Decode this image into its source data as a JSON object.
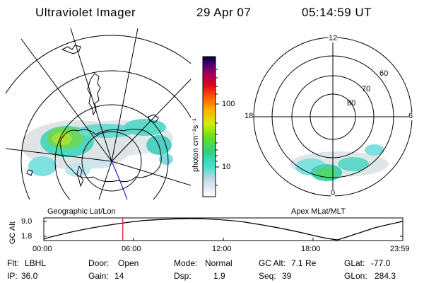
{
  "header": {
    "instrument": "Ultraviolet Imager",
    "date": "29 Apr 07",
    "time": "05:14:59 UT"
  },
  "colorbar": {
    "unit_label": "photon cm⁻²s⁻¹",
    "ticks": [
      "100",
      "10"
    ]
  },
  "left_panel": {
    "caption": "Geographic Lat/Lon"
  },
  "right_panel": {
    "caption": "Apex  MLat/MLT",
    "mlt_labels": {
      "top": "12",
      "left": "18",
      "right": "6",
      "bottom": "0"
    },
    "lat_labels": [
      "60",
      "70",
      "80"
    ]
  },
  "altitude_plot": {
    "axis_label": "GC Alt",
    "y_ticks": [
      "9.0",
      "1.8"
    ],
    "x_ticks": [
      "00:00",
      "06:00",
      "12:00",
      "18:00",
      "23:59"
    ],
    "current_time_marker_fraction": 0.22
  },
  "info": {
    "flt_label": "Flt:",
    "flt_value": "LBHL",
    "ip_label": "IP:",
    "ip_value": "36.0",
    "door_label": "Door:",
    "door_value": "Open",
    "gain_label": "Gain:",
    "gain_value": "14",
    "mode_label": "Mode:",
    "mode_value": "Normal",
    "dsp_label": "Dsp:",
    "dsp_value": "1.9",
    "gcalt_label": "GC Alt:",
    "gcalt_value": "7.1 Re",
    "seq_label": "Seq:",
    "seq_value": "39",
    "glat_label": "GLat:",
    "glat_value": "-77.0",
    "glon_label": "GLon:",
    "glon_value": "284.3"
  }
}
